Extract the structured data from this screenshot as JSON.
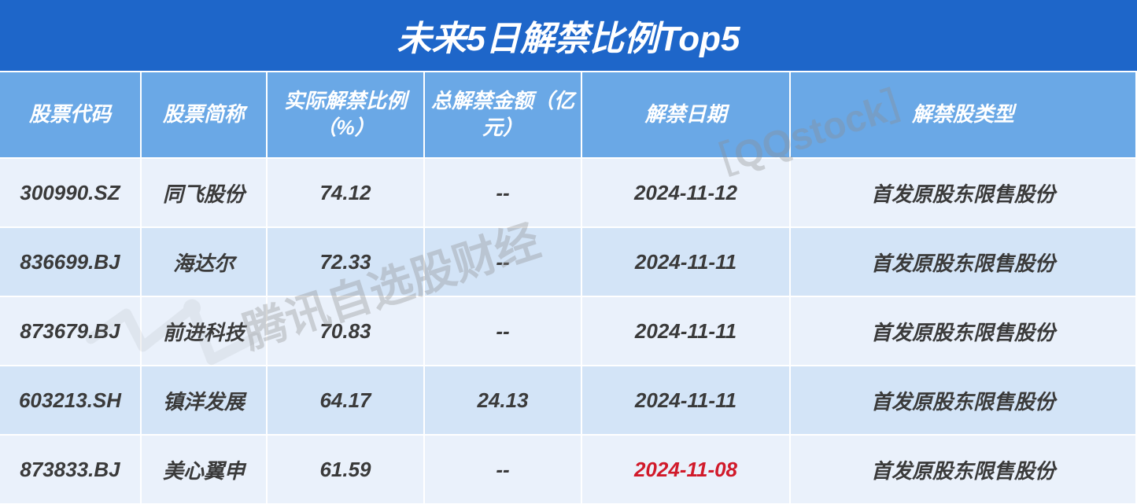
{
  "title": {
    "text": "未来5日解禁比例Top5",
    "bg": "#1e66c9",
    "color": "#ffffff",
    "fontsize": 44
  },
  "header": {
    "bg": "#6aa8e6",
    "color": "#ffffff",
    "fontsize": 26,
    "labels": {
      "code": "股票代码",
      "name": "股票简称",
      "ratio": "实际解禁比例（%）",
      "amount": "总解禁金额（亿元）",
      "date": "解禁日期",
      "type": "解禁股类型"
    }
  },
  "columns": {
    "widths": [
      180,
      160,
      200,
      200,
      265,
      440
    ],
    "align": [
      "center",
      "center",
      "center",
      "center",
      "center",
      "center"
    ]
  },
  "body": {
    "fontsize": 26,
    "text_color": "#3a3a3a",
    "highlight_color": "#d11a2a",
    "row_colors": [
      "#eaf1fb",
      "#d3e4f7"
    ]
  },
  "rows": [
    {
      "code": "300990.SZ",
      "name": "同飞股份",
      "ratio": "74.12",
      "amount": "--",
      "date": "2024-11-12",
      "date_highlight": false,
      "type": "首发原股东限售股份"
    },
    {
      "code": "836699.BJ",
      "name": "海达尔",
      "ratio": "72.33",
      "amount": "--",
      "date": "2024-11-11",
      "date_highlight": false,
      "type": "首发原股东限售股份"
    },
    {
      "code": "873679.BJ",
      "name": "前进科技",
      "ratio": "70.83",
      "amount": "--",
      "date": "2024-11-11",
      "date_highlight": false,
      "type": "首发原股东限售股份"
    },
    {
      "code": "603213.SH",
      "name": "镇洋发展",
      "ratio": "64.17",
      "amount": "24.13",
      "date": "2024-11-11",
      "date_highlight": false,
      "type": "首发原股东限售股份"
    },
    {
      "code": "873833.BJ",
      "name": "美心翼申",
      "ratio": "61.59",
      "amount": "--",
      "date": "2024-11-08",
      "date_highlight": true,
      "type": "首发原股东限售股份"
    }
  ],
  "watermarks": {
    "text1": "腾讯自选股财经",
    "text2": "［QQstock］",
    "color": "rgba(140,140,140,0.35)",
    "rotate_deg": 18,
    "fontsize1": 56,
    "fontsize2": 48
  }
}
